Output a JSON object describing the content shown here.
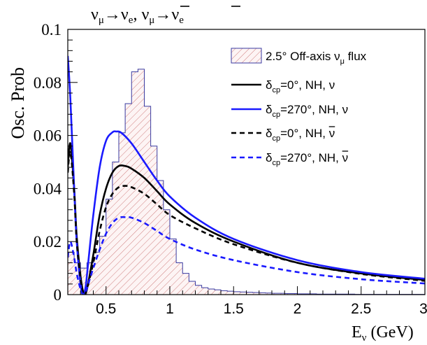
{
  "chart_data": {
    "type": "line",
    "title": "ν_μ→ν_e, ν̄_μ→ν̄_e",
    "title_parts": {
      "nu1": "ν",
      "mu1": "μ",
      "arrow1": "→",
      "nu2": "ν",
      "e1": "e",
      "comma": ",",
      "nu3": "ν",
      "mu2": "μ",
      "arrow2": "→",
      "nu4": "ν",
      "e2": "e"
    },
    "xlabel": "E_ν (GeV)",
    "xlabel_parts": {
      "main": "E",
      "sub": "ν",
      "unit": "(GeV)"
    },
    "ylabel": "Osc. Prob",
    "xlim": [
      0.2,
      3.0
    ],
    "ylim": [
      0,
      0.1
    ],
    "x_ticks": [
      0.5,
      1,
      1.5,
      2,
      2.5,
      3
    ],
    "x_tick_labels": [
      "0.5",
      "1",
      "1.5",
      "2",
      "2.5",
      "3"
    ],
    "y_ticks": [
      0,
      0.02,
      0.04,
      0.06,
      0.08,
      0.1
    ],
    "y_tick_labels": [
      "0",
      "0.02",
      "0.04",
      "0.06",
      "0.08",
      "0.1"
    ],
    "grid": false,
    "legend_position": "top-right",
    "colors": {
      "black": "#000000",
      "blue": "#1a1aff",
      "flux_line": "#3a3aa0",
      "hatch": "#d08080",
      "hatch_bg": "#fdf4f4"
    },
    "flux_histogram": {
      "name": "2.5° Off-axis ν_μ flux",
      "bin_width": 0.05,
      "bin_edges_start": 0.2,
      "values": [
        0.016,
        0.012,
        0.01,
        0.012,
        0.016,
        0.022,
        0.036,
        0.05,
        0.061,
        0.072,
        0.084,
        0.085,
        0.071,
        0.056,
        0.043,
        0.032,
        0.021,
        0.012,
        0.008,
        0.005,
        0.0035,
        0.0026,
        0.0021,
        0.0018,
        0.0015,
        0.0013,
        0.0011,
        0.001,
        0.0009,
        0.0008,
        0.0007,
        0.0006,
        0.0005,
        0.0005,
        0.0004,
        0.0004,
        0.0003,
        0.0003,
        0.0003,
        0.0002,
        0.0002,
        0.0002,
        0.0002,
        0.0002,
        0.0002,
        0.0001,
        0.0001,
        0.0001,
        0.0001,
        0.0001,
        0.0001,
        0.0001,
        0.0001,
        0.0001,
        0.0001,
        0.0001
      ]
    },
    "series": [
      {
        "label": {
          "delta": "δ",
          "sub": "cp",
          "rest": "=0°, NH, ",
          "nu": "ν",
          "bar": false
        },
        "color": "#000000",
        "dash": false,
        "x": [
          0.2,
          0.22,
          0.25,
          0.27,
          0.3,
          0.32,
          0.33,
          0.35,
          0.4,
          0.45,
          0.5,
          0.55,
          0.6,
          0.65,
          0.7,
          0.8,
          0.9,
          1.0,
          1.2,
          1.5,
          2.0,
          2.5,
          3.0
        ],
        "y": [
          0.048,
          0.057,
          0.04,
          0.022,
          0.007,
          0.001,
          0.0,
          0.002,
          0.015,
          0.03,
          0.04,
          0.046,
          0.0485,
          0.0485,
          0.0475,
          0.044,
          0.039,
          0.034,
          0.027,
          0.02,
          0.012,
          0.008,
          0.0055
        ]
      },
      {
        "label": {
          "delta": "δ",
          "sub": "cp",
          "rest": "=270°, NH, ",
          "nu": "ν",
          "bar": false
        },
        "color": "#1a1aff",
        "dash": false,
        "x": [
          0.2,
          0.22,
          0.25,
          0.27,
          0.3,
          0.32,
          0.34,
          0.36,
          0.4,
          0.45,
          0.5,
          0.55,
          0.58,
          0.62,
          0.7,
          0.8,
          0.9,
          1.0,
          1.2,
          1.5,
          2.0,
          2.5,
          3.0
        ],
        "y": [
          0.09,
          0.074,
          0.04,
          0.02,
          0.004,
          0.0,
          0.003,
          0.012,
          0.03,
          0.048,
          0.058,
          0.0612,
          0.0615,
          0.061,
          0.057,
          0.05,
          0.043,
          0.037,
          0.029,
          0.021,
          0.013,
          0.0085,
          0.006
        ]
      },
      {
        "label": {
          "delta": "δ",
          "sub": "cp",
          "rest": "=0°, NH, ",
          "nu": "ν",
          "bar": true
        },
        "color": "#000000",
        "dash": true,
        "x": [
          0.2,
          0.22,
          0.25,
          0.27,
          0.3,
          0.32,
          0.33,
          0.35,
          0.4,
          0.45,
          0.5,
          0.55,
          0.6,
          0.65,
          0.7,
          0.8,
          0.9,
          1.0,
          1.2,
          1.5,
          2.0,
          2.5,
          3.0
        ],
        "y": [
          0.046,
          0.054,
          0.038,
          0.02,
          0.006,
          0.001,
          0.0,
          0.002,
          0.012,
          0.024,
          0.033,
          0.038,
          0.0405,
          0.041,
          0.0405,
          0.038,
          0.034,
          0.03,
          0.025,
          0.019,
          0.012,
          0.0078,
          0.0052
        ]
      },
      {
        "label": {
          "delta": "δ",
          "sub": "cp",
          "rest": "=270°, NH, ",
          "nu": "ν",
          "bar": true
        },
        "color": "#1a1aff",
        "dash": true,
        "x": [
          0.2,
          0.22,
          0.25,
          0.27,
          0.3,
          0.32,
          0.34,
          0.36,
          0.4,
          0.45,
          0.5,
          0.55,
          0.6,
          0.65,
          0.7,
          0.8,
          0.9,
          1.0,
          1.2,
          1.5,
          2.0,
          2.5,
          3.0
        ],
        "y": [
          0.014,
          0.02,
          0.014,
          0.008,
          0.002,
          0.0,
          0.001,
          0.004,
          0.01,
          0.017,
          0.023,
          0.027,
          0.029,
          0.0292,
          0.029,
          0.027,
          0.024,
          0.021,
          0.017,
          0.013,
          0.0085,
          0.0058,
          0.0042
        ]
      }
    ],
    "legend": {
      "flux": {
        "main": "2.5° Off-axis ",
        "nu": "ν",
        "sub": "μ",
        "tail": " flux"
      }
    }
  }
}
